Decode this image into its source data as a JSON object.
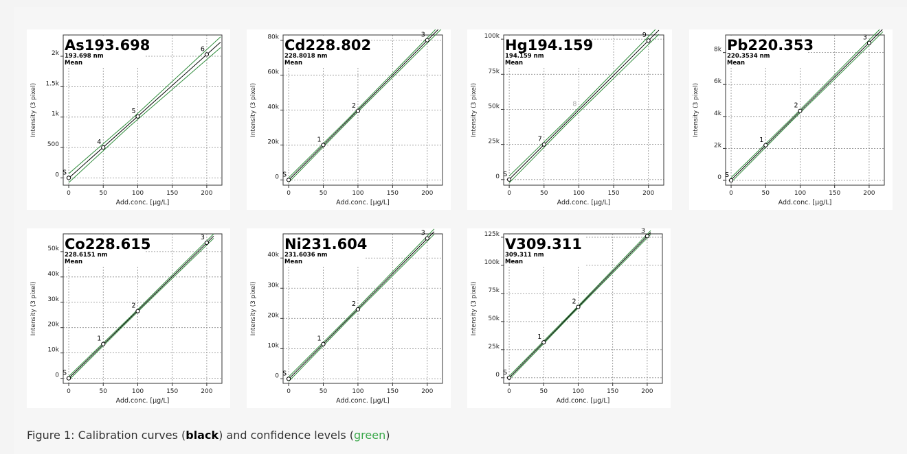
{
  "caption": {
    "prefix": "Figure 1: Calibration curves (",
    "black_word": "black",
    "middle": ") and confidence levels (",
    "green_word": "green",
    "suffix": ")"
  },
  "colors": {
    "curve": "#000000",
    "confidence": "#2e8b3a",
    "grid": "#8c8c8c",
    "point_label_gray": "#aaaaaa"
  },
  "chart_data": [
    {
      "type": "line",
      "title": "As193.698",
      "subtitle_wavelength": "193.698 nm",
      "subtitle_mode": "Mean",
      "xlabel": "Add.conc. [µg/L]",
      "ylabel": "Intensity (3 pixel)",
      "xlim": [
        -8,
        222
      ],
      "ylim": [
        -120,
        2350
      ],
      "xticks": [
        0,
        50,
        100,
        150,
        200
      ],
      "xtick_labels": [
        "0",
        "50",
        "100",
        "150",
        "200"
      ],
      "yticks": [
        0,
        500,
        1000,
        1500,
        2000
      ],
      "ytick_labels": [
        "0",
        "500",
        "1k",
        "1.5k",
        "2k"
      ],
      "grid": true,
      "points": [
        {
          "label": "S",
          "x": 0,
          "y": 0
        },
        {
          "label": "4",
          "x": 50,
          "y": 500
        },
        {
          "label": "5",
          "x": 100,
          "y": 1010
        },
        {
          "label": "6",
          "x": 200,
          "y": 2030
        }
      ],
      "line_x_range": [
        0,
        220
      ],
      "confidence_band": 45
    },
    {
      "type": "line",
      "title": "Cd228.802",
      "subtitle_wavelength": "228.8018 nm",
      "subtitle_mode": "Mean",
      "xlabel": "Add.conc. [µg/L]",
      "ylabel": "Intensity (3 pixel)",
      "xlim": [
        -8,
        222
      ],
      "ylim": [
        -3000,
        83000
      ],
      "xticks": [
        0,
        50,
        100,
        150,
        200
      ],
      "xtick_labels": [
        "0",
        "50",
        "100",
        "150",
        "200"
      ],
      "yticks": [
        0,
        20000,
        40000,
        60000,
        80000
      ],
      "ytick_labels": [
        "0",
        "20k",
        "40k",
        "60k",
        "80k"
      ],
      "grid": true,
      "points": [
        {
          "label": "S",
          "x": 0,
          "y": 0
        },
        {
          "label": "1",
          "x": 50,
          "y": 20000
        },
        {
          "label": "2",
          "x": 100,
          "y": 39500
        },
        {
          "label": "3",
          "x": 200,
          "y": 80000
        }
      ],
      "line_x_range": [
        0,
        220
      ],
      "confidence_band": 800
    },
    {
      "type": "line",
      "title": "Hg194.159",
      "subtitle_wavelength": "194.159 nm",
      "subtitle_mode": "Mean",
      "xlabel": "Add.conc. [µg/L]",
      "ylabel": "Intensity (3 pixel)",
      "xlim": [
        -8,
        222
      ],
      "ylim": [
        -4000,
        103000
      ],
      "xticks": [
        0,
        50,
        100,
        150,
        200
      ],
      "xtick_labels": [
        "0",
        "50",
        "100",
        "150",
        "200"
      ],
      "yticks": [
        0,
        25000,
        50000,
        75000,
        100000
      ],
      "ytick_labels": [
        "0",
        "25k",
        "50k",
        "75k",
        "100k"
      ],
      "grid": true,
      "points": [
        {
          "label": "S",
          "x": 0,
          "y": 0
        },
        {
          "label": "7",
          "x": 50,
          "y": 25000
        },
        {
          "label": "8",
          "x": 100,
          "y": 50000,
          "excluded": true
        },
        {
          "label": "9",
          "x": 200,
          "y": 99000
        }
      ],
      "line_x_range": [
        0,
        215
      ],
      "confidence_band": 1500
    },
    {
      "type": "line",
      "title": "Pb220.353",
      "subtitle_wavelength": "220.3534 nm",
      "subtitle_mode": "Mean",
      "xlabel": "Add.conc. [µg/L]",
      "ylabel": "Intensity (3 pixel)",
      "xlim": [
        -8,
        222
      ],
      "ylim": [
        -300,
        9100
      ],
      "xticks": [
        0,
        50,
        100,
        150,
        200
      ],
      "xtick_labels": [
        "0",
        "50",
        "100",
        "150",
        "200"
      ],
      "yticks": [
        0,
        2000,
        4000,
        6000,
        8000
      ],
      "ytick_labels": [
        "0",
        "2k",
        "4k",
        "6k",
        "8k"
      ],
      "grid": true,
      "points": [
        {
          "label": "S",
          "x": 0,
          "y": 0
        },
        {
          "label": "1",
          "x": 50,
          "y": 2200
        },
        {
          "label": "2",
          "x": 100,
          "y": 4350
        },
        {
          "label": "3",
          "x": 200,
          "y": 8600
        }
      ],
      "line_x_range": [
        0,
        220
      ],
      "confidence_band": 90
    },
    {
      "type": "line",
      "title": "Co228.615",
      "subtitle_wavelength": "228.6151 nm",
      "subtitle_mode": "Mean",
      "xlabel": "Add.conc. [µg/L]",
      "ylabel": "Intensity (3 pixel)",
      "xlim": [
        -8,
        222
      ],
      "ylim": [
        -2000,
        57000
      ],
      "xticks": [
        0,
        50,
        100,
        150,
        200
      ],
      "xtick_labels": [
        "0",
        "50",
        "100",
        "150",
        "200"
      ],
      "yticks": [
        0,
        10000,
        20000,
        30000,
        40000,
        50000
      ],
      "ytick_labels": [
        "0",
        "10k",
        "20k",
        "30k",
        "40k",
        "50k"
      ],
      "grid": true,
      "points": [
        {
          "label": "S",
          "x": 0,
          "y": 0
        },
        {
          "label": "1",
          "x": 50,
          "y": 13500
        },
        {
          "label": "2",
          "x": 100,
          "y": 26500
        },
        {
          "label": "3",
          "x": 200,
          "y": 53500
        }
      ],
      "line_x_range": [
        0,
        210
      ],
      "confidence_band": 450
    },
    {
      "type": "line",
      "title": "Ni231.604",
      "subtitle_wavelength": "231.6036 nm",
      "subtitle_mode": "Mean",
      "xlabel": "Add.conc. [µg/L]",
      "ylabel": "Intensity (3 pixel)",
      "xlim": [
        -8,
        222
      ],
      "ylim": [
        -1500,
        48000
      ],
      "xticks": [
        0,
        50,
        100,
        150,
        200
      ],
      "xtick_labels": [
        "0",
        "50",
        "100",
        "150",
        "200"
      ],
      "yticks": [
        0,
        10000,
        20000,
        30000,
        40000
      ],
      "ytick_labels": [
        "0",
        "10k",
        "20k",
        "30k",
        "40k"
      ],
      "grid": true,
      "points": [
        {
          "label": "S",
          "x": 0,
          "y": 0
        },
        {
          "label": "1",
          "x": 50,
          "y": 11500
        },
        {
          "label": "2",
          "x": 100,
          "y": 23000
        },
        {
          "label": "3",
          "x": 200,
          "y": 46500
        }
      ],
      "line_x_range": [
        0,
        210
      ],
      "confidence_band": 450
    },
    {
      "type": "line",
      "title": "V309.311",
      "subtitle_wavelength": "309.311 nm",
      "subtitle_mode": "Mean",
      "xlabel": "Add.conc. [µg/L]",
      "ylabel": "Intensity (3 pixel)",
      "xlim": [
        -8,
        222
      ],
      "ylim": [
        -5000,
        128000
      ],
      "xticks": [
        0,
        50,
        100,
        150,
        200
      ],
      "xtick_labels": [
        "0",
        "50",
        "100",
        "150",
        "200"
      ],
      "yticks": [
        0,
        25000,
        50000,
        75000,
        100000,
        125000
      ],
      "ytick_labels": [
        "0",
        "25k",
        "50k",
        "75k",
        "100k",
        "125k"
      ],
      "grid": true,
      "points": [
        {
          "label": "S",
          "x": 0,
          "y": 0
        },
        {
          "label": "1",
          "x": 50,
          "y": 31500
        },
        {
          "label": "2",
          "x": 100,
          "y": 63000
        },
        {
          "label": "3",
          "x": 200,
          "y": 126000
        }
      ],
      "line_x_range": [
        0,
        205
      ],
      "confidence_band": 900
    }
  ]
}
